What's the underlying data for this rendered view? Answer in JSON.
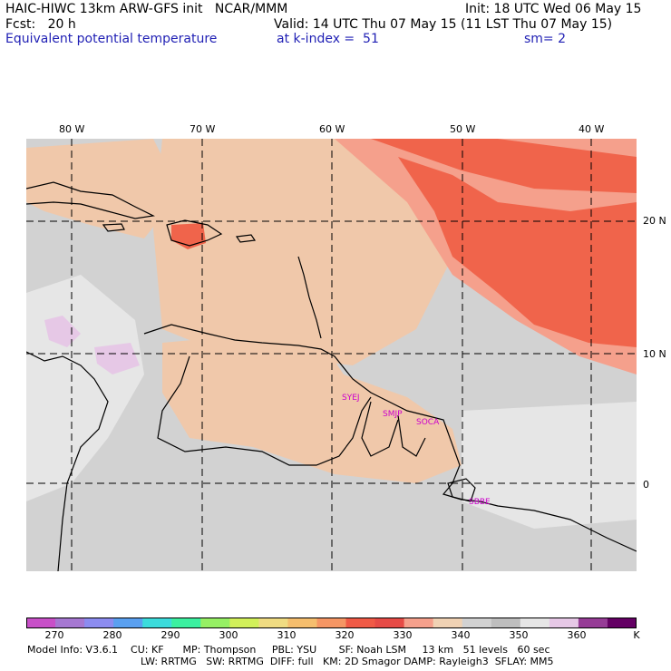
{
  "header": {
    "line1_left": "HAIC-HIWC 13km ARW-GFS init   NCAR/MMM",
    "line1_right": "Init: 18 UTC Wed 06 May 15",
    "line2_left": "Fcst:   20 h",
    "line2_right": "Valid: 14 UTC Thu 07 May 15 (11 LST Thu 07 May 15)",
    "line3_left": "Equivalent potential temperature",
    "line3_mid": "at k-index =  51",
    "line3_right": "sm= 2"
  },
  "axes": {
    "lon_labels": [
      "80 W",
      "70 W",
      "60 W",
      "50 W",
      "40 W"
    ],
    "lat_labels": [
      "20 N",
      "10 N",
      "0"
    ]
  },
  "stations": [
    "SYEJ",
    "SMJP",
    "SOCA",
    "SBBE"
  ],
  "colorbar": {
    "labels": [
      "270",
      "280",
      "290",
      "300",
      "310",
      "320",
      "330",
      "340",
      "350",
      "360",
      "K"
    ],
    "colors": [
      "#c850c8",
      "#a678d2",
      "#8c8cf0",
      "#5aa0f0",
      "#3cdcdc",
      "#3cf0a0",
      "#96f064",
      "#d2f05a",
      "#f0dc82",
      "#f5be6e",
      "#f59664",
      "#f05a46",
      "#e64b46",
      "#f5a08c",
      "#f0d2b4",
      "#d2d2d2",
      "#bebebe",
      "#e6e6e6",
      "#e6c8e6",
      "#963c96",
      "#640064"
    ],
    "colors_note": ""
  },
  "colors": {
    "ocean_base": "#d2d2d2",
    "warm_peach": "#f0c8aa",
    "salmon": "#f5a08c",
    "red": "#f0644b",
    "light_gray": "#e6e6e6",
    "lavender": "#e6c8e6"
  },
  "footer": {
    "line1": "Model Info: V3.6.1    CU: KF      MP: Thompson     PBL: YSU       SF: Noah LSM     13 km   51 levels   60 sec",
    "line2": "LW: RRTMG   SW: RRTMG  DIFF: full   KM: 2D Smagor DAMP: Rayleigh3  SFLAY: MM5"
  }
}
